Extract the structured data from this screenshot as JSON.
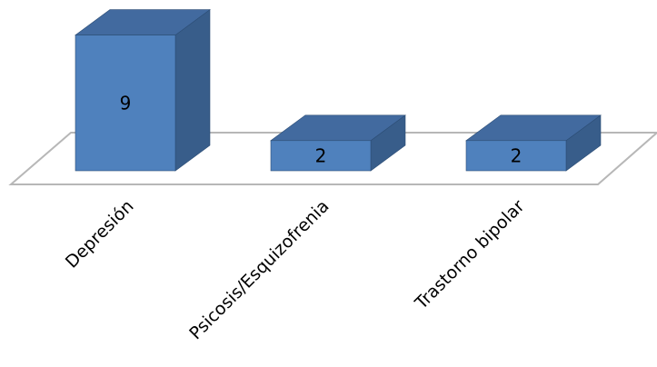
{
  "chart_data": {
    "type": "bar",
    "style": "3d-column",
    "categories": [
      "Depresión",
      "Psicosis/Esquizofrenia",
      "Trastorno bipolar"
    ],
    "values": [
      9,
      2,
      2
    ],
    "title": "",
    "xlabel": "",
    "ylabel": "",
    "grid": false,
    "legend": "none",
    "colors": {
      "front": "#4f81bd",
      "side": "#385d8a",
      "top": "#426a9f",
      "edge": "#2c4d75",
      "floor_edge": "#b7b7b7"
    }
  }
}
